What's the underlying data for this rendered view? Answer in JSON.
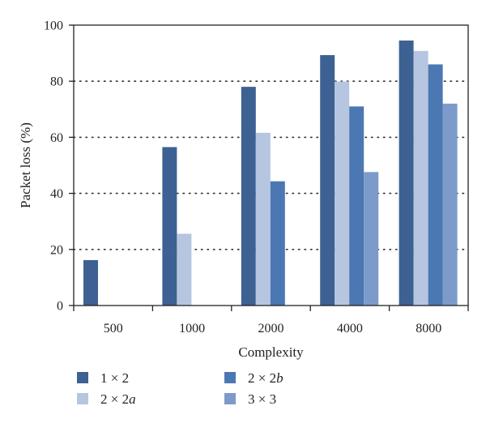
{
  "chart_data": {
    "type": "bar",
    "xlabel": "Complexity",
    "ylabel": "Packet loss (%)",
    "ylim": [
      0,
      100
    ],
    "yticks": [
      0,
      20,
      40,
      60,
      80,
      100
    ],
    "grid": "horizontal dotted",
    "categories": [
      "500",
      "1000",
      "2000",
      "4000",
      "8000"
    ],
    "series": [
      {
        "name": "1 × 2",
        "color": "#3d6192",
        "values": [
          16.2,
          56.5,
          78.0,
          89.3,
          94.5
        ]
      },
      {
        "name": "2 × 2a",
        "color": "#b6c6e0",
        "values": [
          null,
          25.6,
          61.6,
          79.9,
          90.8
        ]
      },
      {
        "name": "2 × 2b",
        "color": "#4b78b3",
        "values": [
          null,
          null,
          44.3,
          71.0,
          86.0
        ]
      },
      {
        "name": "3 × 3",
        "color": "#7c9bcb",
        "values": [
          null,
          null,
          null,
          47.6,
          72.0
        ]
      }
    ],
    "legend": {
      "placement": "bottom",
      "items": [
        {
          "main": "1 × 2",
          "suffix": ""
        },
        {
          "main": "2 × 2",
          "suffix": "a"
        },
        {
          "main": "2 × 2",
          "suffix": "b"
        },
        {
          "main": "3 × 3",
          "suffix": ""
        }
      ]
    }
  }
}
